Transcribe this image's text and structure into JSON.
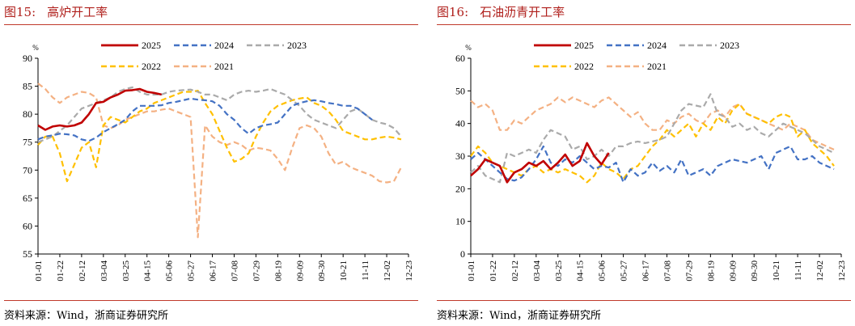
{
  "x_ticks": [
    "01-01",
    "01-22",
    "02-12",
    "03-04",
    "03-25",
    "04-15",
    "05-06",
    "05-27",
    "06-17",
    "07-08",
    "07-29",
    "08-19",
    "09-09",
    "09-30",
    "10-21",
    "11-11",
    "12-02",
    "12-23"
  ],
  "colors": {
    "2025": "#c00000",
    "2024": "#4472c4",
    "2023": "#aaaaaa",
    "2022": "#ffc000",
    "2021": "#f4b183",
    "rule": "#c0392b"
  },
  "chart_data": [
    {
      "figure": "图15:",
      "title": "高炉开工率",
      "type": "line",
      "unit": "%",
      "ylim": [
        55,
        90
      ],
      "yticks": [
        55,
        60,
        65,
        70,
        75,
        80,
        85,
        90
      ],
      "legend": "top, two rows",
      "source": "资料来源：Wind，浙商证券研究所",
      "series": [
        {
          "name": "2025",
          "color": "#c00000",
          "dash": "solid",
          "x": [
            0,
            1,
            2,
            3,
            4,
            5,
            6,
            7,
            8,
            9,
            10,
            11,
            12,
            13,
            14,
            15,
            16,
            17,
            18,
            19,
            20,
            21
          ],
          "y": [
            78,
            77.2,
            77.8,
            78,
            77.8,
            78,
            78.5,
            80,
            82,
            82.2,
            83,
            83.5,
            84.2,
            84.3,
            84.5,
            84,
            83.8,
            83.5,
            null,
            null,
            null,
            null
          ]
        },
        {
          "name": "2024",
          "color": "#4472c4",
          "dash": "dash",
          "x": [
            0,
            1,
            2,
            3,
            4,
            5,
            6,
            7,
            8,
            9,
            10,
            11,
            12,
            13,
            14,
            15,
            16,
            17,
            18,
            19,
            20,
            21,
            22,
            23,
            24,
            25,
            26,
            27,
            28,
            29,
            30,
            31,
            32,
            33,
            34,
            35,
            36,
            37,
            38,
            39,
            40,
            41,
            42,
            43,
            44,
            45,
            46,
            47,
            48,
            49,
            50
          ],
          "y": [
            75.5,
            76,
            76.2,
            76.5,
            76.4,
            76.2,
            75.5,
            75.2,
            75.8,
            76.8,
            77.5,
            78.2,
            79,
            80.5,
            81.5,
            81.5,
            81.5,
            81.6,
            82,
            82.2,
            82.5,
            82.8,
            82.6,
            82.5,
            82.3,
            81.5,
            80,
            79,
            77.5,
            76.5,
            77.5,
            78,
            78.2,
            78.5,
            80,
            81.5,
            82,
            82.3,
            82.5,
            82.3,
            82,
            81.8,
            81.5,
            81.5,
            81,
            80,
            79,
            null,
            null,
            null,
            null
          ]
        },
        {
          "name": "2023",
          "color": "#aaaaaa",
          "dash": "dash",
          "x": [
            0,
            1,
            2,
            3,
            4,
            5,
            6,
            7,
            8,
            9,
            10,
            11,
            12,
            13,
            14,
            15,
            16,
            17,
            18,
            19,
            20,
            21,
            22,
            23,
            24,
            25,
            26,
            27,
            28,
            29,
            30,
            31,
            32,
            33,
            34,
            35,
            36,
            37,
            38,
            39,
            40,
            41,
            42,
            43,
            44,
            45,
            46,
            47,
            48,
            49,
            50
          ],
          "y": [
            75,
            75.5,
            76,
            77,
            78,
            79.5,
            81,
            81.5,
            82,
            82.5,
            83,
            84,
            84.5,
            84.8,
            84,
            83.5,
            83.5,
            83.5,
            84,
            84.2,
            84.3,
            84.4,
            84,
            83.5,
            83.5,
            83,
            82.5,
            83.5,
            84,
            84.2,
            84,
            84.2,
            84.5,
            84,
            83.5,
            82.5,
            81.5,
            80,
            79,
            78.5,
            78,
            77.5,
            79,
            80.5,
            81,
            80,
            79,
            78.5,
            78.2,
            77.5,
            76
          ]
        },
        {
          "name": "2022",
          "color": "#ffc000",
          "dash": "dash",
          "x": [
            0,
            1,
            2,
            3,
            4,
            5,
            6,
            7,
            8,
            9,
            10,
            11,
            12,
            13,
            14,
            15,
            16,
            17,
            18,
            19,
            20,
            21,
            22,
            23,
            24,
            25,
            26,
            27,
            28,
            29,
            30,
            31,
            32,
            33,
            34,
            35,
            36,
            37,
            38,
            39,
            40,
            41,
            42,
            43,
            44,
            45,
            46,
            47,
            48,
            49,
            50
          ],
          "y": [
            74.5,
            76,
            76,
            73,
            68,
            71,
            74,
            75,
            70.5,
            78,
            79.5,
            79,
            78.5,
            79.5,
            80.5,
            81,
            82,
            82.5,
            83,
            83.5,
            84,
            84,
            84.2,
            82,
            80,
            77,
            74,
            71.5,
            72,
            73,
            76,
            78.5,
            80.5,
            81.5,
            82,
            82.5,
            82.8,
            83,
            82,
            81.5,
            80.5,
            79,
            77,
            76.5,
            76,
            75.5,
            75.5,
            75.8,
            76,
            75.8,
            75.5
          ]
        },
        {
          "name": "2021",
          "color": "#f4b183",
          "dash": "dash",
          "x": [
            0,
            1,
            2,
            3,
            4,
            5,
            6,
            7,
            8,
            9,
            10,
            11,
            12,
            13,
            14,
            15,
            16,
            17,
            18,
            19,
            20,
            21,
            22,
            23,
            24,
            25,
            26,
            27,
            28,
            29,
            30,
            31,
            32,
            33,
            34,
            35,
            36,
            37,
            38,
            39,
            40,
            41,
            42,
            43,
            44,
            45,
            46,
            47,
            48,
            49,
            50
          ],
          "y": [
            85.5,
            84.5,
            83,
            82,
            83,
            83.5,
            84,
            83.8,
            83,
            78,
            77.5,
            78,
            79,
            79.5,
            80,
            80.5,
            80.5,
            80.8,
            81,
            80.5,
            80,
            79.5,
            58,
            78,
            76,
            75,
            74.5,
            75,
            74.5,
            73.5,
            74,
            73.8,
            73.5,
            72,
            70,
            74,
            77.5,
            78,
            77.5,
            76,
            73,
            71,
            71.5,
            70.5,
            70,
            69.5,
            69,
            68,
            67.8,
            68,
            70.5
          ]
        }
      ]
    },
    {
      "figure": "图16:",
      "title": "石油沥青开工率",
      "type": "line",
      "unit": "%",
      "ylim": [
        0,
        60
      ],
      "yticks": [
        0,
        10,
        20,
        30,
        40,
        50,
        60
      ],
      "legend": "top, two rows",
      "source": "资料来源：Wind，浙商证券研究所",
      "series": [
        {
          "name": "2025",
          "color": "#c00000",
          "dash": "solid",
          "x": [
            0,
            1,
            2,
            3,
            4,
            5,
            6,
            7,
            8,
            9,
            10,
            11,
            12,
            13,
            14,
            15,
            16,
            17,
            18,
            19,
            20,
            21
          ],
          "y": [
            24,
            26,
            29,
            28,
            27,
            22,
            25,
            26,
            28,
            27,
            28.5,
            26,
            28,
            30.5,
            27,
            28.5,
            34,
            30,
            27.5,
            31,
            null,
            null
          ]
        },
        {
          "name": "2024",
          "color": "#4472c4",
          "dash": "dash",
          "x": [
            0,
            1,
            2,
            3,
            4,
            5,
            6,
            7,
            8,
            9,
            10,
            11,
            12,
            13,
            14,
            15,
            16,
            17,
            18,
            19,
            20,
            21,
            22,
            23,
            24,
            25,
            26,
            27,
            28,
            29,
            30,
            31,
            32,
            33,
            34,
            35,
            36,
            37,
            38,
            39,
            40,
            41,
            42,
            43,
            44,
            45,
            46,
            47,
            48,
            49,
            50
          ],
          "y": [
            29,
            31,
            29,
            27,
            25,
            23,
            22.5,
            23.5,
            26,
            29,
            33,
            28,
            27,
            29,
            28,
            30,
            28,
            26,
            27,
            26.5,
            28,
            22,
            26,
            24,
            25,
            28,
            25.5,
            27,
            25,
            29,
            24,
            25,
            26,
            24,
            27,
            28,
            29,
            28.5,
            28,
            29,
            30,
            26,
            31,
            32,
            33,
            29,
            29,
            30,
            28,
            27,
            26
          ]
        },
        {
          "name": "2023",
          "color": "#aaaaaa",
          "dash": "dash",
          "x": [
            0,
            1,
            2,
            3,
            4,
            5,
            6,
            7,
            8,
            9,
            10,
            11,
            12,
            13,
            14,
            15,
            16,
            17,
            18,
            19,
            20,
            21,
            22,
            23,
            24,
            25,
            26,
            27,
            28,
            29,
            30,
            31,
            32,
            33,
            34,
            35,
            36,
            37,
            38,
            39,
            40,
            41,
            42,
            43,
            44,
            45,
            46,
            47,
            48,
            49,
            50
          ],
          "y": [
            25,
            27,
            24,
            23,
            22,
            31,
            30,
            31,
            32,
            31,
            35,
            38,
            37,
            36,
            32,
            33,
            29,
            30,
            32,
            30,
            33,
            33,
            34,
            34.5,
            34,
            34.5,
            35,
            36,
            40,
            44,
            46,
            45.5,
            45,
            49,
            43,
            42,
            39,
            40,
            38,
            39,
            37,
            36,
            38,
            40,
            39,
            38,
            37,
            35,
            33,
            32,
            31
          ]
        },
        {
          "name": "2022",
          "color": "#ffc000",
          "dash": "dash",
          "x": [
            0,
            1,
            2,
            3,
            4,
            5,
            6,
            7,
            8,
            9,
            10,
            11,
            12,
            13,
            14,
            15,
            16,
            17,
            18,
            19,
            20,
            21,
            22,
            23,
            24,
            25,
            26,
            27,
            28,
            29,
            30,
            31,
            32,
            33,
            34,
            35,
            36,
            37,
            38,
            39,
            40,
            41,
            42,
            43,
            44,
            45,
            46,
            47,
            48,
            49,
            50
          ],
          "y": [
            30,
            33,
            31,
            28,
            27,
            26,
            25,
            24,
            26,
            27,
            25,
            26,
            25,
            26,
            25,
            24,
            22,
            24,
            28,
            26,
            25,
            23,
            26,
            27,
            30,
            33,
            35,
            38,
            36,
            38,
            40,
            36,
            40,
            38,
            42,
            40,
            44,
            46,
            43,
            42,
            41,
            40,
            42,
            43,
            42,
            36,
            38,
            34,
            32,
            30,
            27
          ]
        },
        {
          "name": "2021",
          "color": "#f4b183",
          "dash": "dash",
          "x": [
            0,
            1,
            2,
            3,
            4,
            5,
            6,
            7,
            8,
            9,
            10,
            11,
            12,
            13,
            14,
            15,
            16,
            17,
            18,
            19,
            20,
            21,
            22,
            23,
            24,
            25,
            26,
            27,
            28,
            29,
            30,
            31,
            32,
            33,
            34,
            35,
            36,
            37,
            38,
            39,
            40,
            41,
            42,
            43,
            44,
            45,
            46,
            47,
            48,
            49,
            50
          ],
          "y": [
            47,
            45,
            46,
            44,
            38,
            38,
            41,
            40,
            42,
            44,
            45,
            46,
            48,
            46.5,
            48,
            47,
            46,
            45,
            47,
            48,
            46,
            44,
            42,
            43.5,
            40,
            38,
            38,
            41,
            40,
            42,
            43,
            41,
            40,
            43,
            44,
            42,
            45,
            46,
            43,
            42,
            41,
            40,
            39,
            38,
            40,
            39,
            38,
            35,
            34,
            33,
            32
          ]
        }
      ]
    }
  ]
}
